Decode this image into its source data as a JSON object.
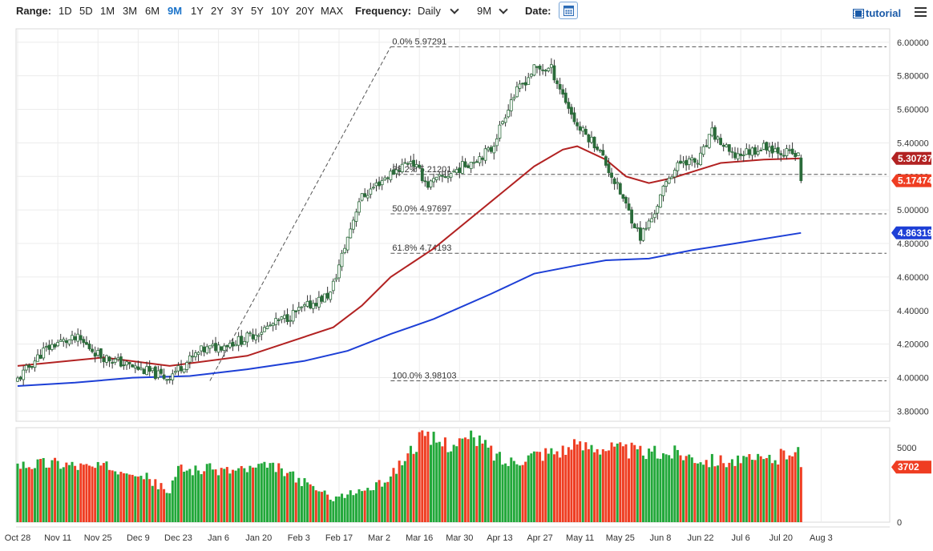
{
  "toolbar": {
    "range_label": "Range:",
    "ranges": [
      "1D",
      "5D",
      "1M",
      "3M",
      "6M",
      "9M",
      "1Y",
      "2Y",
      "3Y",
      "5Y",
      "10Y",
      "20Y",
      "MAX"
    ],
    "active_range": "9M",
    "frequency_label": "Frequency:",
    "frequency_value": "Daily",
    "period_value": "9M",
    "date_label": "Date:",
    "tutorial_label": "tutorial"
  },
  "colors": {
    "up": "#22a83a",
    "down": "#ef3d22",
    "ma_short": "#b22222",
    "ma_long": "#1d3fd6",
    "fib_line": "#555555",
    "accent": "#1a73c9"
  },
  "chart_data": {
    "type": "candlestick",
    "title": "",
    "x_ticks": [
      "Oct 28",
      "Nov 11",
      "Nov 25",
      "Dec 9",
      "Dec 23",
      "Jan 6",
      "Jan 20",
      "Feb 3",
      "Feb 17",
      "Mar 2",
      "Mar 16",
      "Mar 30",
      "Apr 13",
      "Apr 27",
      "May 11",
      "May 25",
      "Jun 8",
      "Jun 22",
      "Jul 6",
      "Jul 20",
      "Aug 3"
    ],
    "y_ticks": [
      "3.80000",
      "4.00000",
      "4.20000",
      "4.40000",
      "4.60000",
      "4.80000",
      "5.00000",
      "5.20000",
      "5.40000",
      "5.60000",
      "5.80000",
      "6.00000"
    ],
    "ylim": [
      3.74,
      6.08
    ],
    "anchors": [
      {
        "d": 0,
        "p": 3.97
      },
      {
        "d": 10,
        "p": 4.16
      },
      {
        "d": 15,
        "p": 4.21
      },
      {
        "d": 22,
        "p": 4.23
      },
      {
        "d": 30,
        "p": 4.13
      },
      {
        "d": 40,
        "p": 4.07
      },
      {
        "d": 53,
        "p": 4.0
      },
      {
        "d": 65,
        "p": 4.16
      },
      {
        "d": 80,
        "p": 4.23
      },
      {
        "d": 96,
        "p": 4.37
      },
      {
        "d": 110,
        "p": 4.5
      },
      {
        "d": 120,
        "p": 5.06
      },
      {
        "d": 128,
        "p": 5.18
      },
      {
        "d": 138,
        "p": 5.3
      },
      {
        "d": 144,
        "p": 5.15
      },
      {
        "d": 152,
        "p": 5.22
      },
      {
        "d": 166,
        "p": 5.36
      },
      {
        "d": 173,
        "p": 5.66
      },
      {
        "d": 181,
        "p": 5.84
      },
      {
        "d": 187,
        "p": 5.84
      },
      {
        "d": 196,
        "p": 5.5
      },
      {
        "d": 203,
        "p": 5.38
      },
      {
        "d": 211,
        "p": 5.1
      },
      {
        "d": 218,
        "p": 4.84
      },
      {
        "d": 222,
        "p": 4.95
      },
      {
        "d": 228,
        "p": 5.2
      },
      {
        "d": 233,
        "p": 5.3
      },
      {
        "d": 238,
        "p": 5.28
      },
      {
        "d": 243,
        "p": 5.46
      },
      {
        "d": 250,
        "p": 5.32
      },
      {
        "d": 262,
        "p": 5.38
      },
      {
        "d": 273,
        "p": 5.32
      }
    ],
    "last_candle": {
      "open": 5.31,
      "high": 5.33,
      "low": 5.16,
      "close": 5.17474
    },
    "ma_short": {
      "name": "MA short",
      "last": 5.30737,
      "points": [
        [
          0,
          4.07
        ],
        [
          30,
          4.12
        ],
        [
          53,
          4.07
        ],
        [
          80,
          4.13
        ],
        [
          110,
          4.3
        ],
        [
          120,
          4.43
        ],
        [
          130,
          4.6
        ],
        [
          145,
          4.77
        ],
        [
          165,
          5.05
        ],
        [
          180,
          5.26
        ],
        [
          190,
          5.36
        ],
        [
          195,
          5.38
        ],
        [
          205,
          5.3
        ],
        [
          212,
          5.2
        ],
        [
          220,
          5.16
        ],
        [
          228,
          5.19
        ],
        [
          245,
          5.28
        ],
        [
          260,
          5.3
        ],
        [
          273,
          5.30737
        ]
      ]
    },
    "ma_long": {
      "name": "MA long",
      "last": 4.86319,
      "points": [
        [
          0,
          3.95
        ],
        [
          20,
          3.97
        ],
        [
          40,
          4.0
        ],
        [
          60,
          4.01
        ],
        [
          80,
          4.05
        ],
        [
          100,
          4.1
        ],
        [
          115,
          4.16
        ],
        [
          130,
          4.26
        ],
        [
          145,
          4.35
        ],
        [
          165,
          4.5
        ],
        [
          180,
          4.62
        ],
        [
          195,
          4.67
        ],
        [
          205,
          4.7
        ],
        [
          220,
          4.71
        ],
        [
          235,
          4.76
        ],
        [
          250,
          4.8
        ],
        [
          273,
          4.86319
        ]
      ]
    },
    "fibonacci": {
      "levels": [
        {
          "label": "0.0% 5.97291",
          "value": 5.97291
        },
        {
          "label": "38.2% 5.21201",
          "value": 5.21201
        },
        {
          "label": "50.0% 4.97697",
          "value": 4.97697
        },
        {
          "label": "61.8% 4.74193",
          "value": 4.74193
        },
        {
          "label": "100.0% 3.98103",
          "value": 3.98103
        }
      ],
      "anchor_low": {
        "d": 67,
        "p": 3.98103
      },
      "anchor_high": {
        "d": 130,
        "p": 5.97291
      }
    },
    "badges": [
      {
        "label": "5.30737",
        "value": 5.30737,
        "color": "#b22222"
      },
      {
        "label": "5.17474",
        "value": 5.17474,
        "color": "#ef3d22"
      },
      {
        "label": "4.86319",
        "value": 4.86319,
        "color": "#1d3fd6"
      }
    ],
    "volume": {
      "ticks": [
        "5000",
        "0"
      ],
      "ymax": 5600,
      "last_label": "3702",
      "last_value": 3702,
      "profile": [
        [
          0,
          3900
        ],
        [
          15,
          4000
        ],
        [
          25,
          3700
        ],
        [
          40,
          3600
        ],
        [
          53,
          2000
        ],
        [
          56,
          3600
        ],
        [
          75,
          3500
        ],
        [
          90,
          3700
        ],
        [
          110,
          1600
        ],
        [
          125,
          2400
        ],
        [
          130,
          3100
        ],
        [
          140,
          5600
        ],
        [
          150,
          5300
        ],
        [
          160,
          5600
        ],
        [
          170,
          4000
        ],
        [
          180,
          4600
        ],
        [
          190,
          4900
        ],
        [
          200,
          5200
        ],
        [
          210,
          4900
        ],
        [
          220,
          4600
        ],
        [
          230,
          4700
        ],
        [
          240,
          4200
        ],
        [
          255,
          4100
        ],
        [
          265,
          4300
        ],
        [
          272,
          5200
        ],
        [
          273,
          3702
        ]
      ]
    }
  }
}
